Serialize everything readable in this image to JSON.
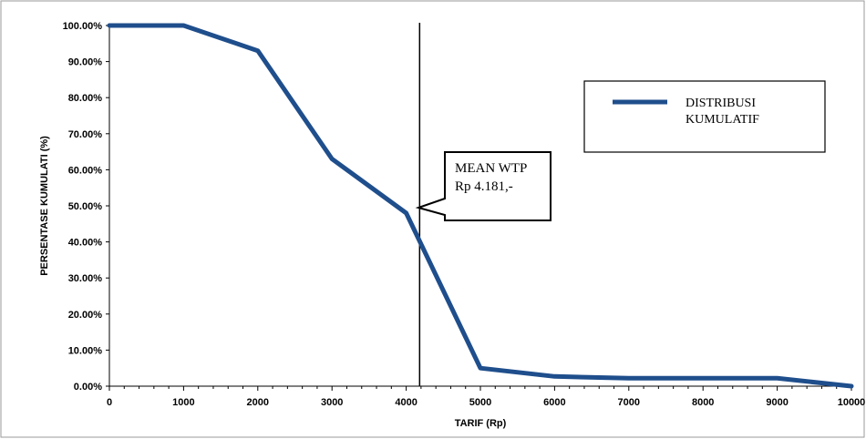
{
  "chart_data": {
    "type": "line",
    "title": "",
    "xlabel": "TARIF (Rp)",
    "ylabel": "PERSENTASE KUMULATI (%)",
    "xlim": [
      0,
      10000
    ],
    "ylim": [
      0,
      100
    ],
    "x_ticks": [
      0,
      1000,
      2000,
      3000,
      4000,
      5000,
      6000,
      7000,
      8000,
      9000,
      10000
    ],
    "y_ticks": [
      0,
      10,
      20,
      30,
      40,
      50,
      60,
      70,
      80,
      90,
      100
    ],
    "y_tick_labels": [
      "0.00%",
      "10.00%",
      "20.00%",
      "30.00%",
      "40.00%",
      "50.00%",
      "60.00%",
      "70.00%",
      "80.00%",
      "90.00%",
      "100.00%"
    ],
    "grid": false,
    "legend_placement": "top-right",
    "series": [
      {
        "name": "DISTRIBUSI KUMULATIF",
        "color": "#1f4e8c",
        "x": [
          0,
          1000,
          2000,
          3000,
          4000,
          5000,
          6000,
          7000,
          8000,
          9000,
          10000
        ],
        "y": [
          100,
          100,
          93,
          63,
          48,
          5,
          2.7,
          2.2,
          2.2,
          2.2,
          0
        ]
      }
    ],
    "reference_line": {
      "x": 4181
    },
    "annotation": {
      "lines": [
        "MEAN WTP",
        "Rp 4.181,-"
      ],
      "x": 4181,
      "y": 50
    }
  }
}
